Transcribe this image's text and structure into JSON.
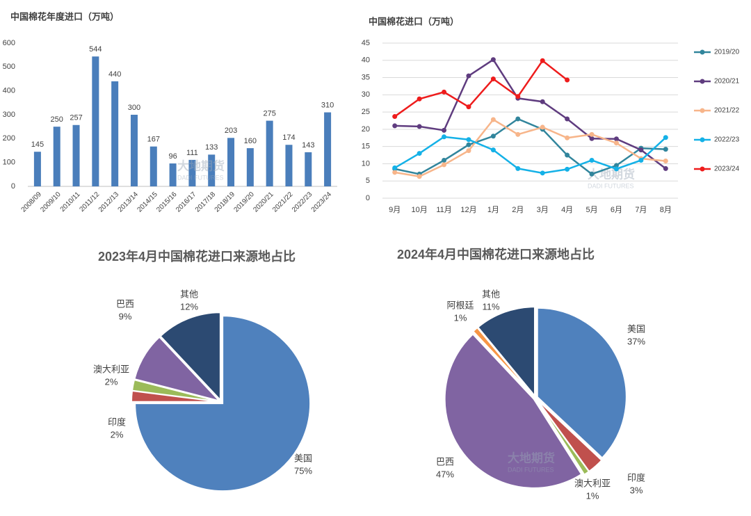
{
  "chart_data": [
    {
      "type": "bar",
      "title": "中国棉花年度进口（万吨）",
      "categories": [
        "2008/09",
        "2009/10",
        "2010/11",
        "2011/12",
        "2012/13",
        "2013/14",
        "2014/15",
        "2015/16",
        "2016/17",
        "2017/18",
        "2018/19",
        "2019/20",
        "2020/21",
        "2021/22",
        "2022/23",
        "2023/24"
      ],
      "values": [
        145,
        250,
        257,
        544,
        440,
        300,
        167,
        96,
        111,
        133,
        203,
        160,
        275,
        174,
        143,
        310
      ],
      "color": "#4a7ebb",
      "ylim": [
        0,
        600
      ],
      "yticks": [
        0,
        100,
        200,
        300,
        400,
        500,
        600
      ],
      "grid": false,
      "watermark": [
        "大地期货",
        "DADI FUTURES"
      ]
    },
    {
      "type": "line",
      "title": "中国棉花进口（万吨）",
      "categories": [
        "9月",
        "10月",
        "11月",
        "12月",
        "1月",
        "2月",
        "3月",
        "4月",
        "5月",
        "6月",
        "7月",
        "8月"
      ],
      "series": [
        {
          "name": "2019/20",
          "color": "#31859c",
          "values": [
            8.5,
            7,
            11,
            15.5,
            18,
            23,
            20,
            12.5,
            7,
            9.5,
            14.5,
            14.2
          ]
        },
        {
          "name": "2020/21",
          "color": "#5f3c7f",
          "values": [
            21,
            20.8,
            19.7,
            35.5,
            40.2,
            29,
            28,
            23,
            17.3,
            17.2,
            14,
            8.6
          ]
        },
        {
          "name": "2021/22",
          "color": "#f7b58a",
          "values": [
            7.5,
            6.3,
            9.7,
            13.8,
            22.8,
            18.5,
            20.6,
            17.5,
            18.5,
            16,
            11.5,
            10.8
          ]
        },
        {
          "name": "2022/23",
          "color": "#14b1e7",
          "values": [
            8.8,
            13,
            17.8,
            17,
            14,
            8.6,
            7.3,
            8.4,
            11,
            8.5,
            11,
            17.6
          ]
        },
        {
          "name": "2023/24",
          "color": "#ee1c1c",
          "values": [
            23.7,
            28.8,
            30.8,
            26.5,
            34.6,
            29.5,
            39.9,
            34.3,
            null,
            null,
            null,
            null
          ]
        }
      ],
      "ylim": [
        0,
        45
      ],
      "yticks": [
        0,
        5,
        10,
        15,
        20,
        25,
        30,
        35,
        40,
        45
      ],
      "grid": true,
      "legend": "right",
      "watermark": [
        "大地期货",
        "DADI FUTURES"
      ]
    },
    {
      "type": "pie",
      "title": "2023年4月中国棉花进口来源地占比",
      "categories": [
        "美国",
        "印度",
        "澳大利亚",
        "巴西",
        "其他"
      ],
      "values": [
        75,
        2,
        2,
        9,
        12
      ],
      "value_labels": [
        "75%",
        "2%",
        "2%",
        "9%",
        "12%"
      ],
      "colors": [
        "#4f81bd",
        "#c0504d",
        "#9bbb59",
        "#8064a2",
        "#2c4a72"
      ]
    },
    {
      "type": "pie",
      "title": "2024年4月中国棉花进口来源地占比",
      "categories": [
        "美国",
        "印度",
        "澳大利亚",
        "巴西",
        "阿根廷",
        "其他"
      ],
      "values": [
        37,
        3,
        1,
        47,
        1,
        11
      ],
      "value_labels": [
        "37%",
        "3%",
        "1%",
        "47%",
        "1%",
        "11%"
      ],
      "colors": [
        "#4f81bd",
        "#c0504d",
        "#9bbb59",
        "#8064a2",
        "#f79646",
        "#2c4a72"
      ],
      "watermark": [
        "大地期货",
        "DADI FUTURES"
      ]
    }
  ]
}
